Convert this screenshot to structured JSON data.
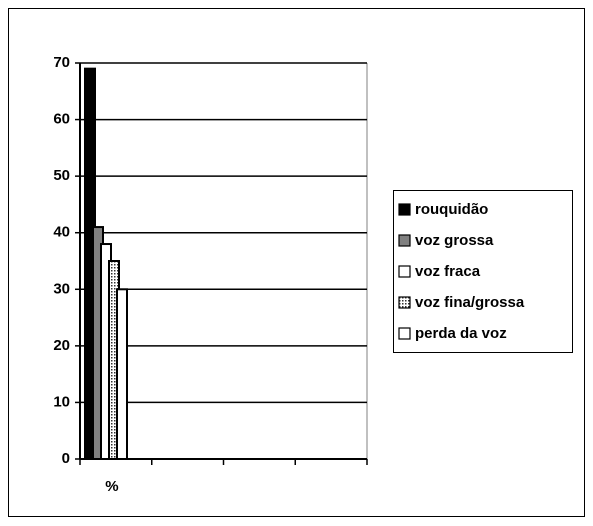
{
  "chart_data": {
    "type": "bar",
    "categories": [
      "%",
      null,
      null,
      null
    ],
    "series": [
      {
        "name": "rouquidão",
        "color": "#000000",
        "values": [
          69,
          null,
          null,
          null
        ]
      },
      {
        "name": "voz grossa",
        "color": "#808080",
        "values": [
          41,
          null,
          null,
          null
        ]
      },
      {
        "name": "voz fraca",
        "color": "#ffffff",
        "values": [
          38,
          null,
          null,
          null
        ]
      },
      {
        "name": "voz fina/grossa",
        "color": "#9a9a9a",
        "values": [
          35,
          null,
          null,
          null
        ]
      },
      {
        "name": "perda da voz",
        "color": "#ffffff",
        "values": [
          30,
          null,
          null,
          null
        ]
      }
    ],
    "ylim": [
      0,
      70
    ],
    "yticks": [
      0,
      10,
      20,
      30,
      40,
      50,
      60,
      70
    ],
    "grid": true,
    "legend": "right"
  }
}
